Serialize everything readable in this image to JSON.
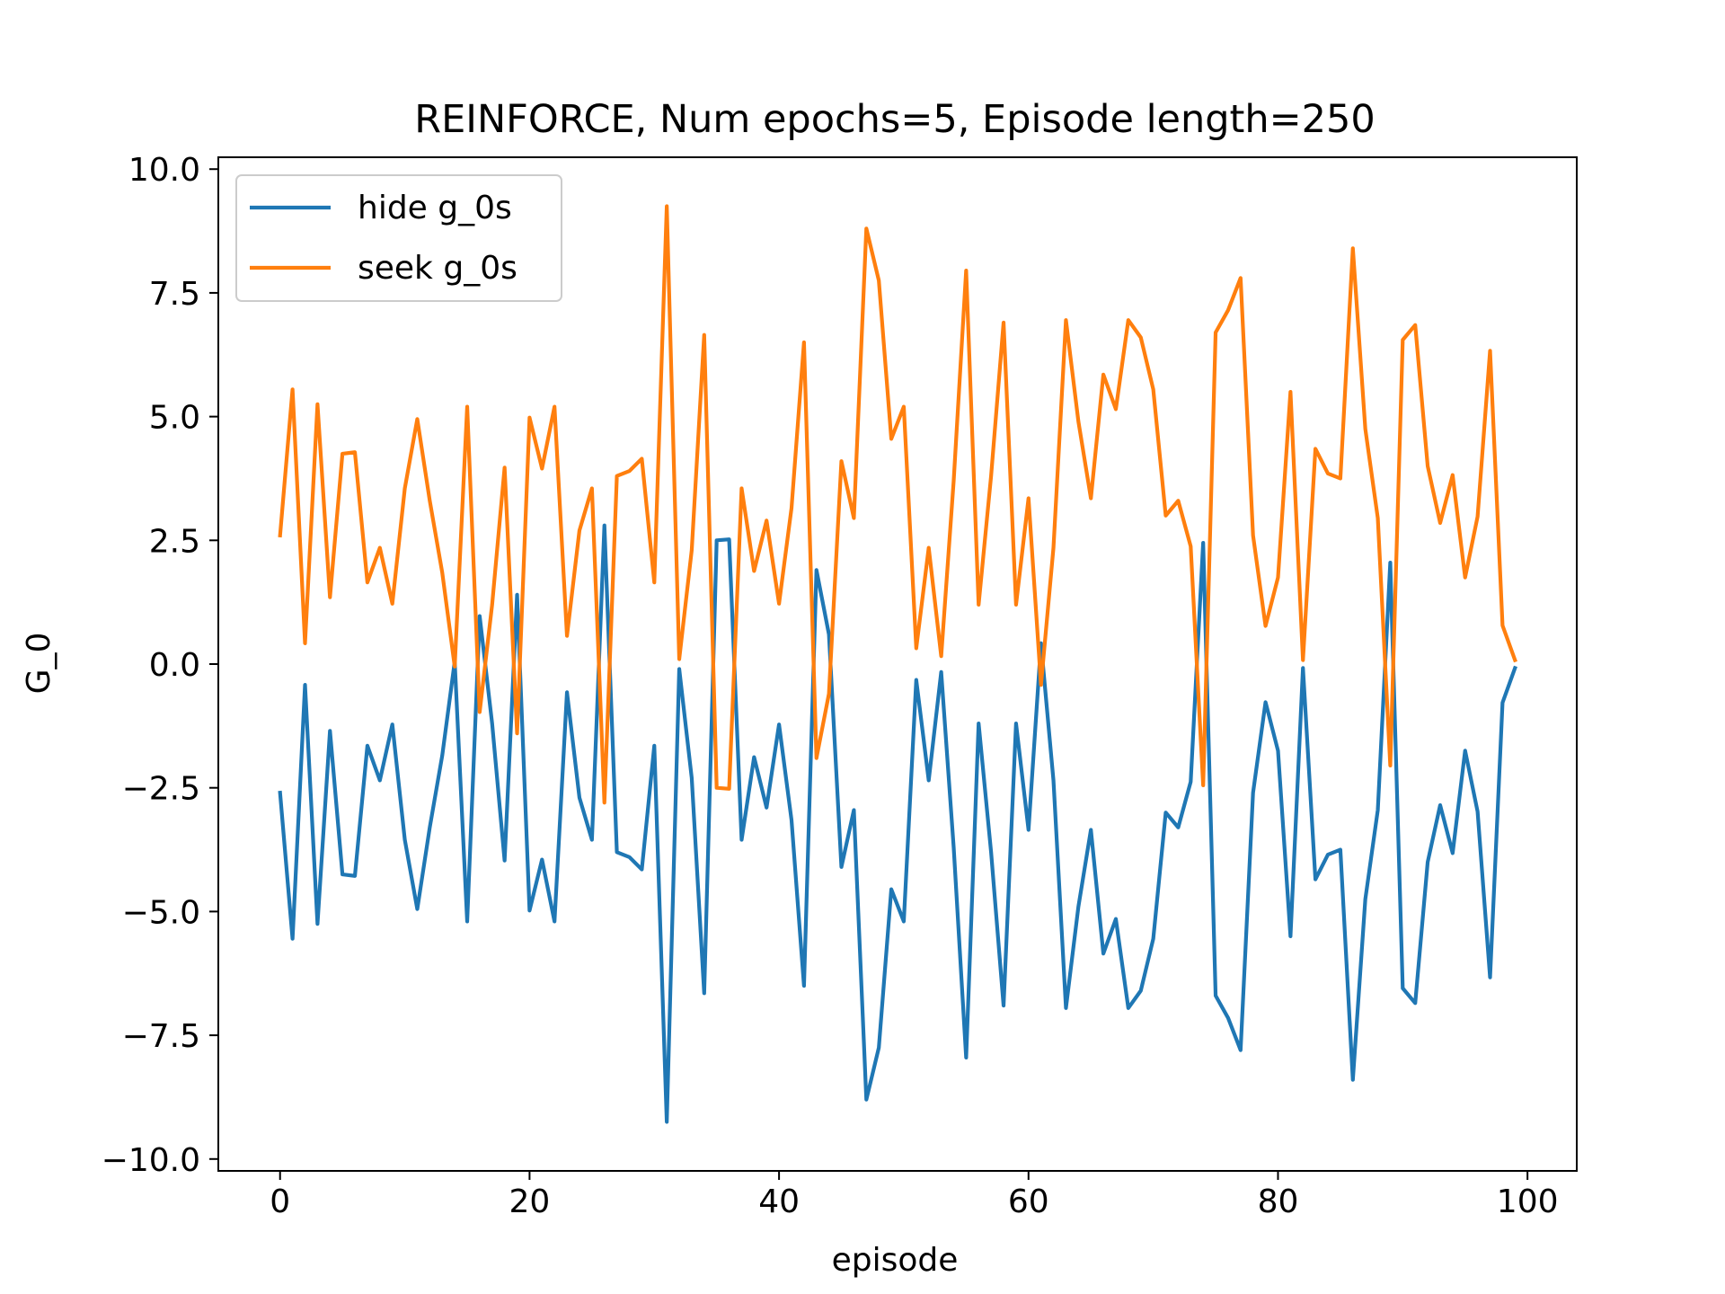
{
  "chart_data": {
    "type": "line",
    "title": "REINFORCE, Num epochs=5, Episode length=250",
    "xlabel": "episode",
    "ylabel": "G_0",
    "xlim": [
      -4.95,
      103.95
    ],
    "ylim": [
      -10.24,
      10.24
    ],
    "xticks": [
      0,
      20,
      40,
      60,
      80,
      100
    ],
    "xtick_labels": [
      "0",
      "20",
      "40",
      "60",
      "80",
      "100"
    ],
    "yticks": [
      10.0,
      7.5,
      5.0,
      2.5,
      0.0,
      -2.5,
      -5.0,
      -7.5,
      -10.0
    ],
    "ytick_labels": [
      "10.0",
      "7.5",
      "5.0",
      "2.5",
      "0.0",
      "−2.5",
      "−5.0",
      "−7.5",
      "−10.0"
    ],
    "grid": false,
    "legend_position": "upper left",
    "x": [
      0,
      1,
      2,
      3,
      4,
      5,
      6,
      7,
      8,
      9,
      10,
      11,
      12,
      13,
      14,
      15,
      16,
      17,
      18,
      19,
      20,
      21,
      22,
      23,
      24,
      25,
      26,
      27,
      28,
      29,
      30,
      31,
      32,
      33,
      34,
      35,
      36,
      37,
      38,
      39,
      40,
      41,
      42,
      43,
      44,
      45,
      46,
      47,
      48,
      49,
      50,
      51,
      52,
      53,
      54,
      55,
      56,
      57,
      58,
      59,
      60,
      61,
      62,
      63,
      64,
      65,
      66,
      67,
      68,
      69,
      70,
      71,
      72,
      73,
      74,
      75,
      76,
      77,
      78,
      79,
      80,
      81,
      82,
      83,
      84,
      85,
      86,
      87,
      88,
      89,
      90,
      91,
      92,
      93,
      94,
      95,
      96,
      97,
      98,
      99
    ],
    "series": [
      {
        "name": "hide g_0s",
        "color": "#1f77b4",
        "values": [
          -2.6,
          -5.55,
          -0.42,
          -5.25,
          -1.35,
          -4.25,
          -4.28,
          -1.65,
          -2.35,
          -1.22,
          -3.55,
          -4.95,
          -3.3,
          -1.85,
          0.05,
          -5.2,
          0.97,
          -1.2,
          -3.97,
          1.4,
          -4.98,
          -3.95,
          -5.2,
          -0.57,
          -2.7,
          -3.55,
          2.8,
          -3.8,
          -3.9,
          -4.15,
          -1.65,
          -9.25,
          -0.1,
          -2.3,
          -6.65,
          2.5,
          2.52,
          -3.55,
          -1.88,
          -2.9,
          -1.22,
          -3.15,
          -6.5,
          1.9,
          0.6,
          -4.1,
          -2.95,
          -8.8,
          -7.75,
          -4.55,
          -5.2,
          -0.32,
          -2.35,
          -0.16,
          -3.7,
          -7.95,
          -1.2,
          -3.8,
          -6.9,
          -1.2,
          -3.35,
          0.42,
          -2.35,
          -6.95,
          -4.9,
          -3.35,
          -5.85,
          -5.15,
          -6.95,
          -6.6,
          -5.55,
          -3.0,
          -3.3,
          -2.38,
          2.45,
          -6.7,
          -7.15,
          -7.8,
          -2.6,
          -0.77,
          -1.75,
          -5.5,
          -0.08,
          -4.35,
          -3.85,
          -3.75,
          -8.4,
          -4.75,
          -2.95,
          2.05,
          -6.55,
          -6.85,
          -4.0,
          -2.85,
          -3.82,
          -1.75,
          -2.98,
          -6.33,
          -0.78,
          -0.08
        ]
      },
      {
        "name": "seek g_0s",
        "color": "#ff7f0e",
        "values": [
          2.6,
          5.55,
          0.42,
          5.25,
          1.35,
          4.25,
          4.28,
          1.65,
          2.35,
          1.22,
          3.55,
          4.95,
          3.3,
          1.85,
          -0.05,
          5.2,
          -0.97,
          1.2,
          3.97,
          -1.4,
          4.98,
          3.95,
          5.2,
          0.57,
          2.7,
          3.55,
          -2.8,
          3.8,
          3.9,
          4.15,
          1.65,
          9.25,
          0.1,
          2.3,
          6.65,
          -2.5,
          -2.52,
          3.55,
          1.88,
          2.9,
          1.22,
          3.15,
          6.5,
          -1.9,
          -0.6,
          4.1,
          2.95,
          8.8,
          7.75,
          4.55,
          5.2,
          0.32,
          2.35,
          0.16,
          3.7,
          7.95,
          1.2,
          3.8,
          6.9,
          1.2,
          3.35,
          -0.42,
          2.35,
          6.95,
          4.9,
          3.35,
          5.85,
          5.15,
          6.95,
          6.6,
          5.55,
          3.0,
          3.3,
          2.38,
          -2.45,
          6.7,
          7.15,
          7.8,
          2.6,
          0.77,
          1.75,
          5.5,
          0.08,
          4.35,
          3.85,
          3.75,
          8.4,
          4.75,
          2.95,
          -2.05,
          6.55,
          6.85,
          4.0,
          2.85,
          3.82,
          1.75,
          2.98,
          6.33,
          0.78,
          0.08
        ]
      }
    ]
  }
}
